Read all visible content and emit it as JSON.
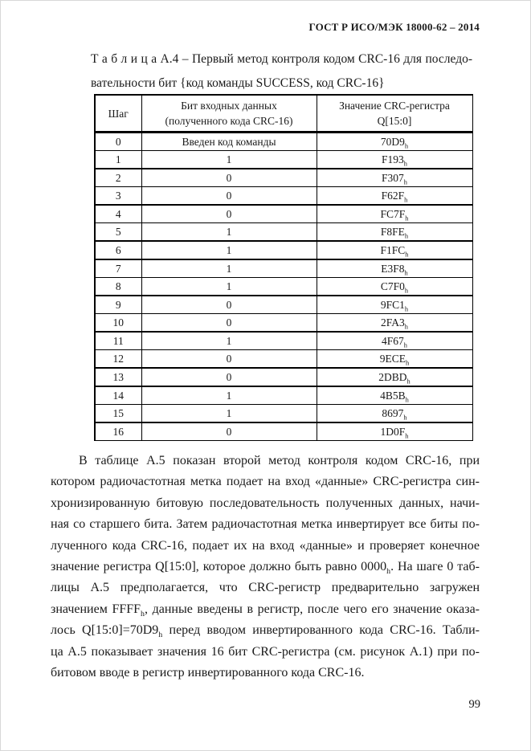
{
  "document": {
    "header": "ГОСТ Р ИСО/МЭК 18000-62 – 2014",
    "page_number": "99"
  },
  "caption": {
    "line1": "Т а б л и ц а А.4 – Первый метод контроля кодом CRC-16 для последо-",
    "line2": "вательности бит {код команды SUCCESS, код CRC-16}"
  },
  "table": {
    "columns": [
      "Шаг",
      "Бит входных данных\n(полученного кода CRC-16)",
      "Значение CRC-регистра\nQ[15:0]"
    ],
    "rows": [
      {
        "step": "0",
        "bit": "Введен код команды",
        "value": "70D9_h"
      },
      {
        "step": "1",
        "bit": "1",
        "value": "F193_h"
      },
      {
        "step": "2",
        "bit": "0",
        "value": "F307_h"
      },
      {
        "step": "3",
        "bit": "0",
        "value": "F62F_h"
      },
      {
        "step": "4",
        "bit": "0",
        "value": "FC7F_h"
      },
      {
        "step": "5",
        "bit": "1",
        "value": "F8FE_h"
      },
      {
        "step": "6",
        "bit": "1",
        "value": "F1FC_h"
      },
      {
        "step": "7",
        "bit": "1",
        "value": "E3F8_h"
      },
      {
        "step": "8",
        "bit": "1",
        "value": "C7F0_h"
      },
      {
        "step": "9",
        "bit": "0",
        "value": "9FC1_h"
      },
      {
        "step": "10",
        "bit": "0",
        "value": "2FA3_h"
      },
      {
        "step": "11",
        "bit": "1",
        "value": "4F67_h"
      },
      {
        "step": "12",
        "bit": "0",
        "value": "9ECE_h"
      },
      {
        "step": "13",
        "bit": "0",
        "value": "2DBD_h"
      },
      {
        "step": "14",
        "bit": "1",
        "value": "4B5B_h"
      },
      {
        "step": "15",
        "bit": "1",
        "value": "8697_h"
      },
      {
        "step": "16",
        "bit": "0",
        "value": "1D0F_h"
      }
    ]
  },
  "paragraph": {
    "lines": [
      "В таблице А.5 показан второй метод контроля кодом CRC-16, при",
      "котором радиочастотная метка подает на вход «данные» CRC-регистра син-",
      "хронизированную битовую последовательность полученных данных, начи-",
      "ная со старшего бита. Затем радиочастотная метка инвертирует все биты по-",
      "лученного кода CRC-16, подает их на вход «данные» и проверяет конечное",
      "значение регистра Q[15:0], которое должно быть равно 0000_h. На шаге 0 таб-",
      "лицы А.5 предполагается, что CRC-регистр предварительно загружен",
      "значением FFFF_h, данные введены в регистр, после чего его значение оказа-",
      "лось Q[15:0]=70D9_h перед вводом инвертированного кода CRC-16. Табли-",
      "ца А.5 показывает значения 16 бит CRC-регистра (см. рисунок А.1) при по-",
      "битовом вводе в регистр инвертированного кода CRC-16."
    ]
  }
}
